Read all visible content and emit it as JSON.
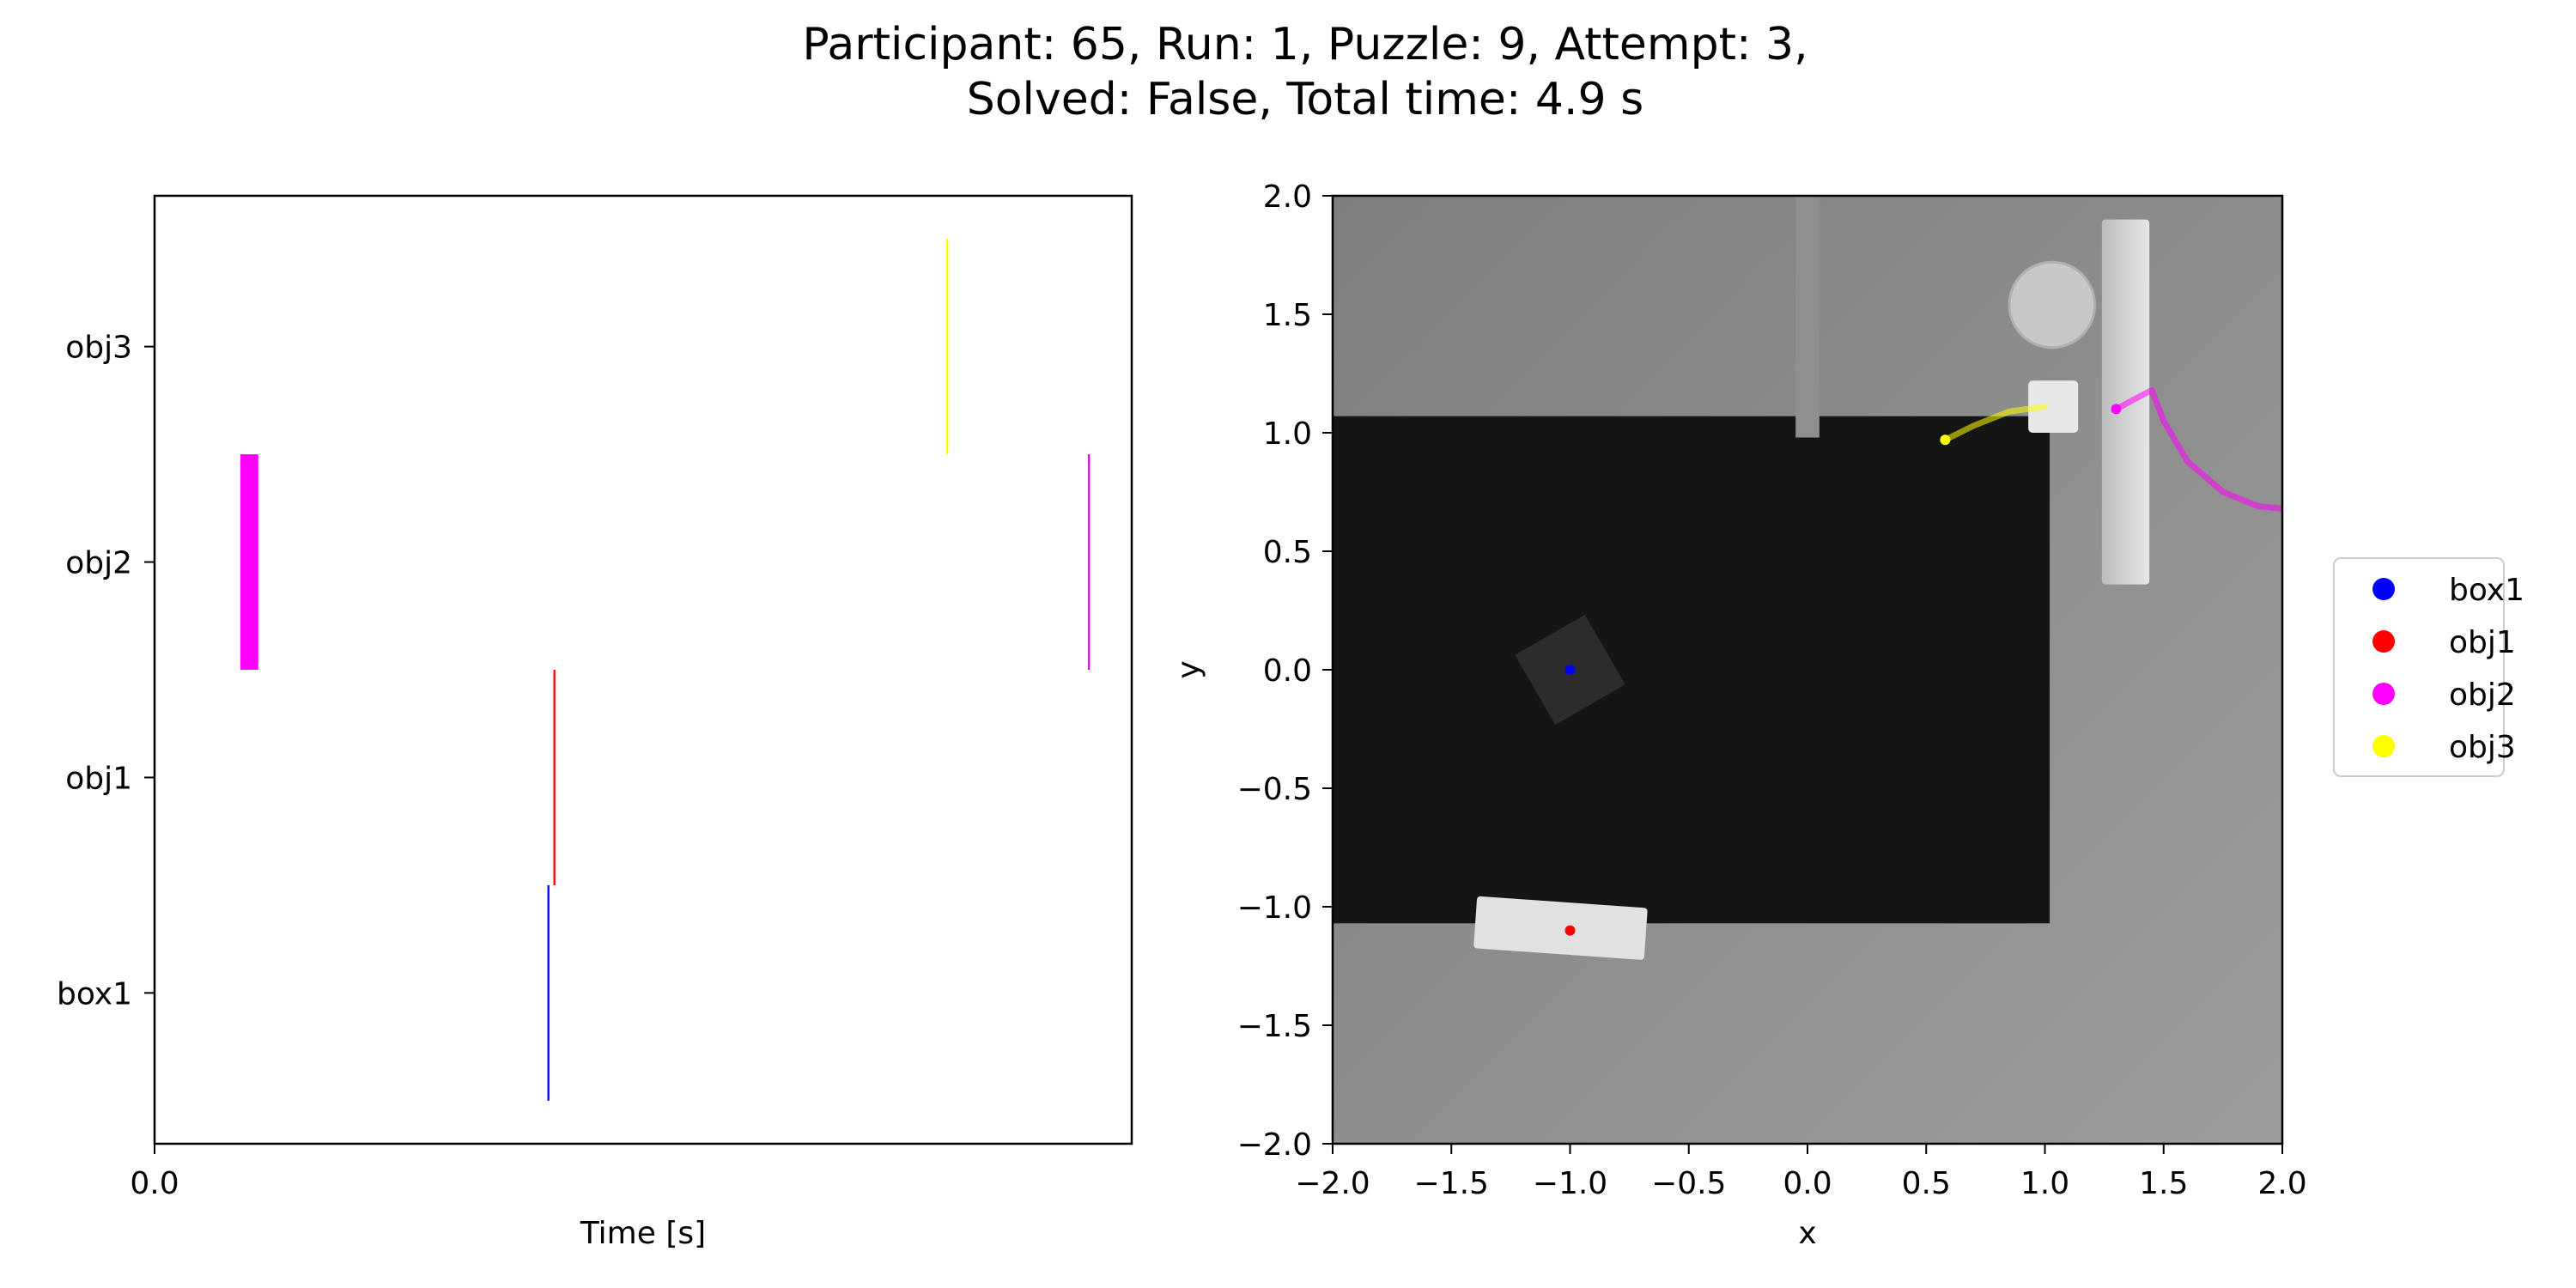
{
  "title_line1": "Participant: 65, Run: 1, Puzzle: 9, Attempt: 3,",
  "title_line2": "Solved: False, Total time: 4.9 s",
  "chart_data": [
    {
      "type": "timeline",
      "xlabel": "Time [s]",
      "ylabel": "",
      "xticks": [
        "0.0"
      ],
      "xlim": [
        0,
        4.9
      ],
      "categories": [
        "box1",
        "obj1",
        "obj2",
        "obj3"
      ],
      "events": [
        {
          "object": "obj2",
          "start": 0.43,
          "end": 0.52,
          "color": "#ff00ff"
        },
        {
          "object": "box1",
          "start": 1.97,
          "end": 1.98,
          "color": "#0000ff"
        },
        {
          "object": "obj1",
          "start": 2.0,
          "end": 2.01,
          "color": "#ff0000"
        },
        {
          "object": "obj3",
          "start": 3.97,
          "end": 3.98,
          "color": "#ffff00"
        },
        {
          "object": "obj2",
          "start": 4.68,
          "end": 4.69,
          "color": "#ff00ff"
        }
      ],
      "grid": false
    },
    {
      "type": "scatter",
      "xlabel": "x",
      "ylabel": "y",
      "xlim": [
        -2.0,
        2.0
      ],
      "ylim": [
        -2.0,
        2.0
      ],
      "xticks": [
        "−2.0",
        "−1.5",
        "−1.0",
        "−0.5",
        "0.0",
        "0.5",
        "1.0",
        "1.5",
        "2.0"
      ],
      "yticks": [
        "−2.0",
        "−1.5",
        "−1.0",
        "−0.5",
        "0.0",
        "0.5",
        "1.0",
        "1.5",
        "2.0"
      ],
      "background": "top-down scene rendering",
      "series": [
        {
          "name": "box1",
          "color": "#0000ff",
          "points": [
            [
              -1.0,
              0.0
            ]
          ]
        },
        {
          "name": "obj1",
          "color": "#ff0000",
          "points": [
            [
              -1.0,
              -1.1
            ]
          ]
        },
        {
          "name": "obj2",
          "color": "#ff00ff",
          "points": [
            [
              1.3,
              1.1
            ]
          ],
          "trail": [
            [
              1.3,
              1.1
            ],
            [
              1.45,
              1.18
            ],
            [
              1.5,
              1.05
            ],
            [
              1.6,
              0.88
            ],
            [
              1.75,
              0.75
            ],
            [
              1.9,
              0.69
            ],
            [
              2.0,
              0.68
            ]
          ]
        },
        {
          "name": "obj3",
          "color": "#ffff00",
          "points": [
            [
              0.58,
              0.97
            ]
          ],
          "trail": [
            [
              1.0,
              1.11
            ],
            [
              0.85,
              1.09
            ],
            [
              0.7,
              1.03
            ],
            [
              0.58,
              0.97
            ]
          ]
        }
      ],
      "legend": [
        "box1",
        "obj1",
        "obj2",
        "obj3"
      ],
      "legend_position": "right",
      "grid": false
    }
  ]
}
